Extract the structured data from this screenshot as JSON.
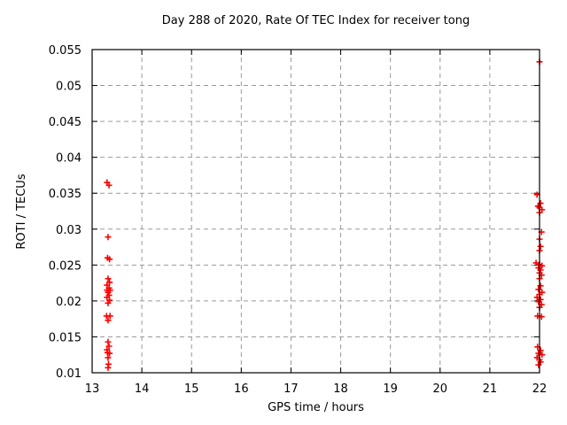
{
  "window": {
    "background": "#ffffff"
  },
  "chart_data": {
    "type": "scatter",
    "title": "Day 288 of 2020, Rate Of TEC Index for receiver tong",
    "xlabel": "GPS time / hours",
    "ylabel": "ROTI / TECUs",
    "xlim": [
      13,
      22
    ],
    "ylim": [
      0.01,
      0.055
    ],
    "grid": true,
    "legend": "none",
    "xticks": [
      {
        "value": 13,
        "label": "13"
      },
      {
        "value": 14,
        "label": "14"
      },
      {
        "value": 15,
        "label": "15"
      },
      {
        "value": 16,
        "label": "16"
      },
      {
        "value": 17,
        "label": "17"
      },
      {
        "value": 18,
        "label": "18"
      },
      {
        "value": 19,
        "label": "19"
      },
      {
        "value": 20,
        "label": "20"
      },
      {
        "value": 21,
        "label": "21"
      },
      {
        "value": 22,
        "label": "22"
      }
    ],
    "yticks": [
      {
        "value": 0.01,
        "label": "0.01"
      },
      {
        "value": 0.015,
        "label": "0.015"
      },
      {
        "value": 0.02,
        "label": "0.02"
      },
      {
        "value": 0.025,
        "label": "0.025"
      },
      {
        "value": 0.03,
        "label": "0.03"
      },
      {
        "value": 0.035,
        "label": "0.035"
      },
      {
        "value": 0.04,
        "label": "0.04"
      },
      {
        "value": 0.045,
        "label": "0.045"
      },
      {
        "value": 0.05,
        "label": "0.05"
      },
      {
        "value": 0.055,
        "label": "0.055"
      }
    ],
    "style": {
      "grid_color": "#9a9a9a",
      "axis_color": "#000000",
      "text_color": "#000000",
      "background": "#ffffff"
    },
    "series": [
      {
        "name": "ROTI",
        "marker": "plus",
        "color": "#ff0000",
        "points": [
          [
            13.3,
            0.0365
          ],
          [
            13.34,
            0.0361
          ],
          [
            13.32,
            0.0289
          ],
          [
            13.31,
            0.026
          ],
          [
            13.35,
            0.0258
          ],
          [
            13.32,
            0.0231
          ],
          [
            13.35,
            0.0226
          ],
          [
            13.3,
            0.0222
          ],
          [
            13.34,
            0.0218
          ],
          [
            13.3,
            0.0215
          ],
          [
            13.36,
            0.0215
          ],
          [
            13.32,
            0.0212
          ],
          [
            13.34,
            0.0208
          ],
          [
            13.3,
            0.0205
          ],
          [
            13.35,
            0.0201
          ],
          [
            13.32,
            0.0197
          ],
          [
            13.29,
            0.0179
          ],
          [
            13.36,
            0.0179
          ],
          [
            13.32,
            0.0173
          ],
          [
            13.32,
            0.0143
          ],
          [
            13.34,
            0.0137
          ],
          [
            13.3,
            0.0132
          ],
          [
            13.31,
            0.0128
          ],
          [
            13.35,
            0.0127
          ],
          [
            13.32,
            0.0121
          ],
          [
            13.33,
            0.0112
          ],
          [
            13.32,
            0.0107
          ],
          [
            22.0,
            0.0533
          ],
          [
            21.95,
            0.0348
          ],
          [
            22.02,
            0.0336
          ],
          [
            21.97,
            0.0332
          ],
          [
            22.0,
            0.033
          ],
          [
            22.05,
            0.0327
          ],
          [
            22.0,
            0.0323
          ],
          [
            22.04,
            0.0296
          ],
          [
            22.0,
            0.0286
          ],
          [
            22.02,
            0.0276
          ],
          [
            22.0,
            0.027
          ],
          [
            21.93,
            0.0253
          ],
          [
            22.0,
            0.0251
          ],
          [
            22.05,
            0.0249
          ],
          [
            21.98,
            0.0246
          ],
          [
            22.02,
            0.0243
          ],
          [
            22.0,
            0.0239
          ],
          [
            22.04,
            0.0236
          ],
          [
            22.0,
            0.0231
          ],
          [
            22.02,
            0.0221
          ],
          [
            21.98,
            0.0216
          ],
          [
            22.05,
            0.0212
          ],
          [
            22.0,
            0.0209
          ],
          [
            21.95,
            0.0205
          ],
          [
            22.02,
            0.0202
          ],
          [
            21.98,
            0.0199
          ],
          [
            22.04,
            0.0195
          ],
          [
            22.0,
            0.0191
          ],
          [
            21.96,
            0.0179
          ],
          [
            22.04,
            0.0178
          ],
          [
            21.96,
            0.0136
          ],
          [
            22.02,
            0.0131
          ],
          [
            21.98,
            0.0127
          ],
          [
            22.05,
            0.0125
          ],
          [
            21.95,
            0.0121
          ],
          [
            22.0,
            0.0118
          ],
          [
            22.02,
            0.0115
          ],
          [
            21.98,
            0.0111
          ]
        ]
      }
    ]
  }
}
